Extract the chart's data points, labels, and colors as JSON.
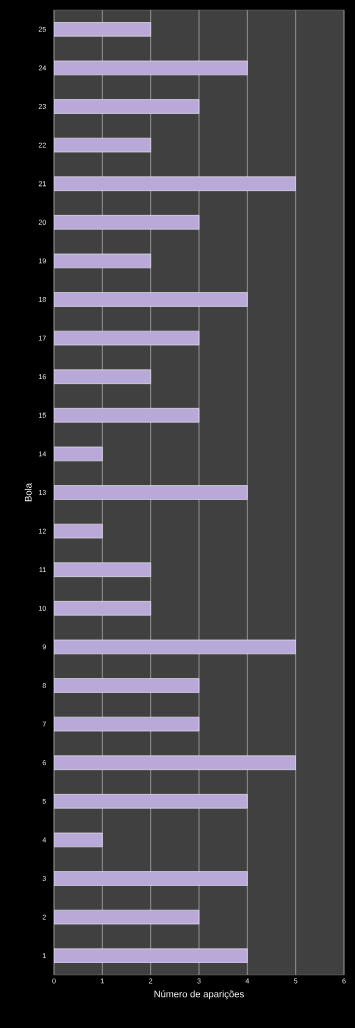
{
  "chart_data": {
    "type": "bar",
    "orientation": "horizontal",
    "xlabel": "Número de aparições",
    "ylabel": "Bola",
    "categories": [
      "25",
      "24",
      "23",
      "22",
      "21",
      "20",
      "19",
      "18",
      "17",
      "16",
      "15",
      "14",
      "13",
      "12",
      "11",
      "10",
      "9",
      "8",
      "7",
      "6",
      "5",
      "4",
      "3",
      "2",
      "1"
    ],
    "values": [
      2,
      4,
      3,
      2,
      5,
      3,
      2,
      4,
      3,
      2,
      3,
      1,
      4,
      1,
      2,
      2,
      5,
      3,
      3,
      5,
      4,
      1,
      4,
      3,
      4
    ],
    "color": "#b8a9d8",
    "xlim": [
      0,
      6
    ],
    "xticks": [
      0,
      1,
      2,
      3,
      4,
      5,
      6
    ],
    "grid": "x"
  }
}
